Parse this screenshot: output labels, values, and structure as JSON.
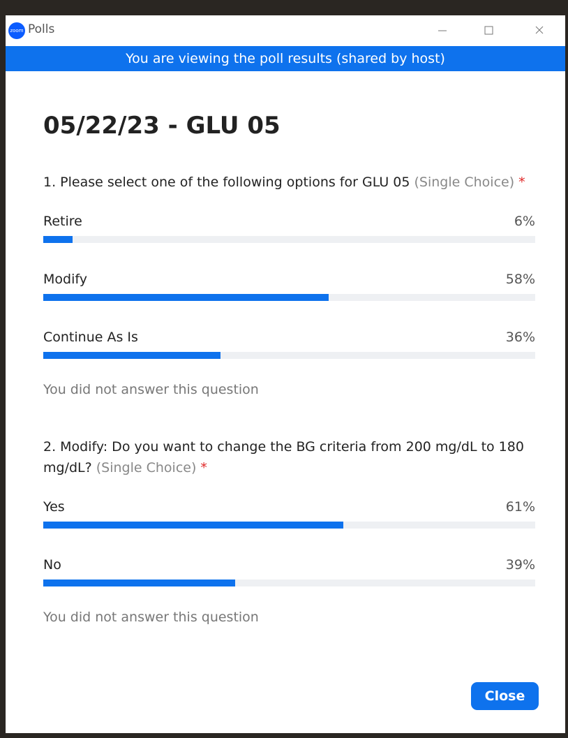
{
  "window": {
    "app_name": "Polls",
    "icon_text": "zoom"
  },
  "banner": "You are viewing the poll results (shared by host)",
  "poll_title": "05/22/23 - GLU 05",
  "questions": [
    {
      "text": "1. Please select one of the following options for GLU 05",
      "kind": "(Single Choice)",
      "required": "*",
      "options": [
        {
          "label": "Retire",
          "percent": 6,
          "percent_label": "6%"
        },
        {
          "label": "Modify",
          "percent": 58,
          "percent_label": "58%"
        },
        {
          "label": "Continue As Is",
          "percent": 36,
          "percent_label": "36%"
        }
      ],
      "note": "You did not answer this question"
    },
    {
      "text": "2. Modify: Do you want to change the BG criteria  from 200 mg/dL to 180 mg/dL?",
      "kind": "(Single Choice)",
      "required": "*",
      "options": [
        {
          "label": "Yes",
          "percent": 61,
          "percent_label": "61%"
        },
        {
          "label": "No",
          "percent": 39,
          "percent_label": "39%"
        }
      ],
      "note": "You did not answer this question"
    }
  ],
  "close_button": "Close"
}
